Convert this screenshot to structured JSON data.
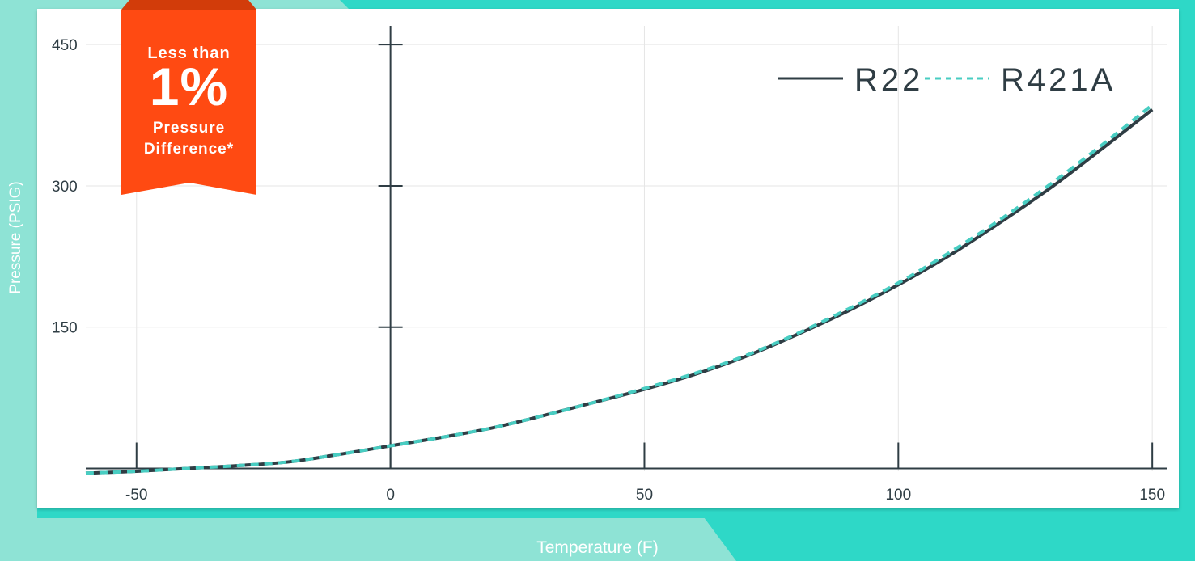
{
  "colors": {
    "background": "#8ee3d5",
    "accent_teal": "#2ed8c7",
    "dark_line": "#2f3d44",
    "dashed_line": "#48cdc2",
    "badge_orange": "#ff4a12",
    "grid": "#e6e6e6"
  },
  "badge": {
    "line1": "Less than",
    "big": "1%",
    "line3": "Pressure",
    "line4": "Difference*"
  },
  "chart_data": {
    "type": "line",
    "title": "",
    "xlabel": "Temperature (F)",
    "ylabel": "Pressure (PSIG)",
    "xlim": [
      -60,
      153
    ],
    "ylim": [
      -3,
      457
    ],
    "x_ticks": [
      -50,
      0,
      50,
      100,
      150
    ],
    "y_ticks": [
      150,
      300,
      450
    ],
    "grid": true,
    "legend": "top-right",
    "series": [
      {
        "name": "R22",
        "style": "solid",
        "color": "#2f3d44",
        "x": [
          -60,
          -50,
          -40,
          -30,
          -20,
          -10,
          0,
          10,
          20,
          30,
          40,
          50,
          60,
          70,
          80,
          90,
          100,
          110,
          120,
          130,
          140,
          150
        ],
        "y": [
          -5,
          -3,
          0,
          3,
          7,
          15,
          24,
          33,
          43,
          56,
          70,
          84,
          100,
          119,
          142,
          167,
          195,
          226,
          261,
          298,
          339,
          381
        ]
      },
      {
        "name": "R421A",
        "style": "dashed",
        "color": "#48cdc2",
        "x": [
          -60,
          -50,
          -40,
          -30,
          -20,
          -10,
          0,
          10,
          20,
          30,
          40,
          50,
          60,
          70,
          80,
          90,
          100,
          110,
          120,
          130,
          140,
          150
        ],
        "y": [
          -5,
          -3,
          0,
          3,
          7,
          15,
          24,
          33,
          43,
          56,
          70,
          85,
          101,
          120,
          143,
          169,
          197,
          229,
          264,
          302,
          343,
          386
        ]
      }
    ]
  }
}
